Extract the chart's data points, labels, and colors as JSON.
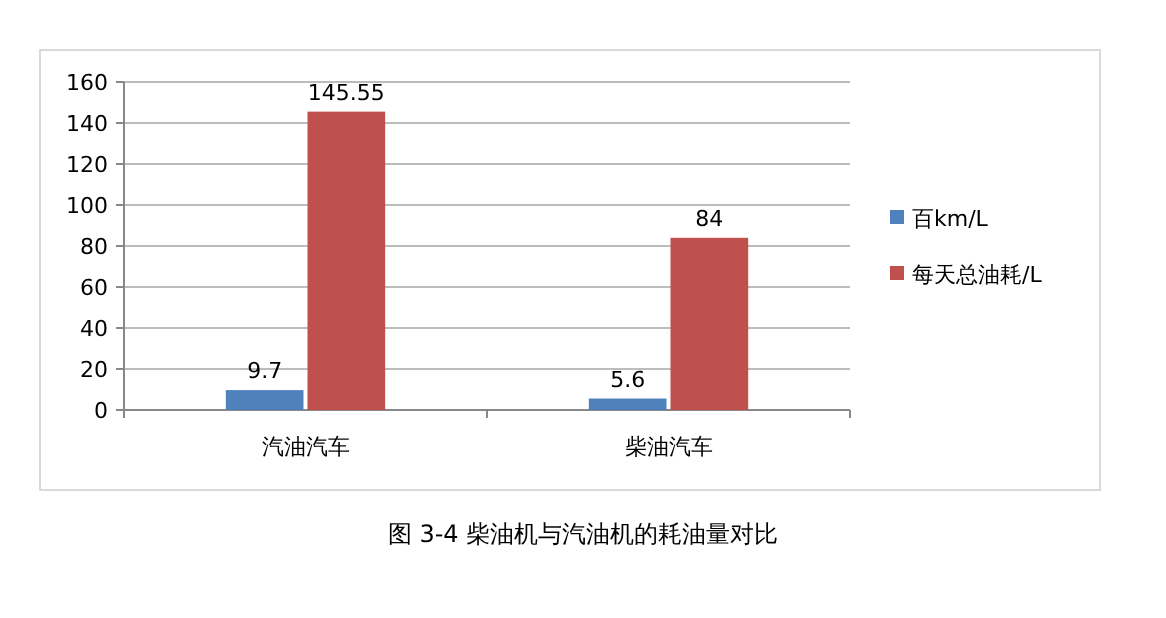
{
  "chart_data": {
    "type": "bar",
    "title": "图 3-4 柴油机与汽油机的耗油量对比",
    "categories": [
      "汽油汽车",
      "柴油汽车"
    ],
    "series": [
      {
        "name": "百km/L",
        "color": "#4f81bd",
        "values": [
          9.7,
          5.6
        ]
      },
      {
        "name": "每天总油耗/L",
        "color": "#c0504d",
        "values": [
          145.55,
          84
        ]
      }
    ],
    "ylim": [
      0,
      160
    ],
    "yticks": [
      0,
      20,
      40,
      60,
      80,
      100,
      120,
      140,
      160
    ],
    "grid": "y",
    "legend": "right",
    "data_labels": true
  }
}
